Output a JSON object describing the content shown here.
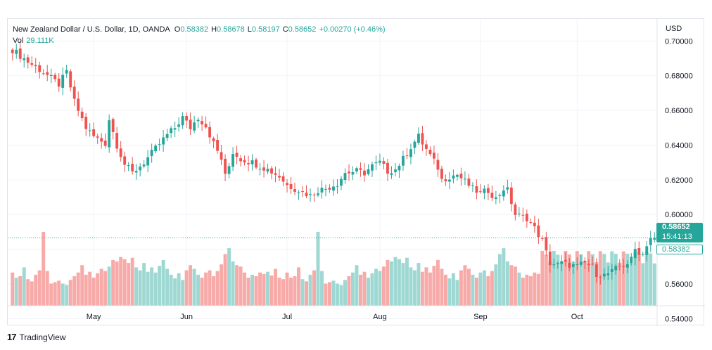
{
  "legend": {
    "symbol": "New Zealand Dollar / U.S. Dollar, 1D, OANDA",
    "o_label": "O",
    "o_value": "0.58382",
    "h_label": "H",
    "h_value": "0.58678",
    "l_label": "L",
    "l_value": "0.58197",
    "c_label": "C",
    "c_value": "0.58652",
    "change": "+0.00270 (+0.46%)",
    "vol_label": "Vol",
    "vol_value": "29.111K"
  },
  "price_scale": {
    "currency": "USD"
  },
  "tags": {
    "last_price": "0.58652",
    "countdown": "15:41:13",
    "open_price": "0.58382"
  },
  "brand": {
    "logo": "17",
    "name": "TradingView"
  },
  "colors": {
    "up": "#26a69a",
    "down": "#ef5350",
    "up_volume": "#9fd8d2",
    "down_volume": "#f7aaa8",
    "grid": "#f0f3fa"
  },
  "chart_data": {
    "type": "candlestick",
    "title": "New Zealand Dollar / U.S. Dollar, 1D, OANDA",
    "y_axis": {
      "currency": "USD",
      "ticks": [
        0.54,
        0.56,
        0.58,
        0.6,
        0.62,
        0.64,
        0.66,
        0.68,
        0.7
      ],
      "tick_labels": [
        "0.54000",
        "0.56000",
        "0.58000",
        "0.60000",
        "0.62000",
        "0.64000",
        "0.66000",
        "0.68000",
        "0.70000"
      ],
      "range": [
        0.5357,
        0.7127
      ]
    },
    "x_axis": {
      "month_labels": [
        {
          "label": "May",
          "index": 21
        },
        {
          "label": "Jun",
          "index": 45
        },
        {
          "label": "Jul",
          "index": 71
        },
        {
          "label": "Aug",
          "index": 95
        },
        {
          "label": "Sep",
          "index": 121
        },
        {
          "label": "Oct",
          "index": 146
        }
      ]
    },
    "grid": true,
    "last_price_line": 0.58652,
    "path": [
      [
        0,
        0.695
      ],
      [
        4,
        0.688
      ],
      [
        8,
        0.682
      ],
      [
        12,
        0.675
      ],
      [
        14,
        0.682
      ],
      [
        16,
        0.665
      ],
      [
        19,
        0.65
      ],
      [
        21,
        0.645
      ],
      [
        24,
        0.641
      ],
      [
        25,
        0.655
      ],
      [
        27,
        0.64
      ],
      [
        29,
        0.629
      ],
      [
        31,
        0.624
      ],
      [
        34,
        0.63
      ],
      [
        37,
        0.638
      ],
      [
        40,
        0.646
      ],
      [
        42,
        0.65
      ],
      [
        44,
        0.656
      ],
      [
        46,
        0.65
      ],
      [
        48,
        0.656
      ],
      [
        50,
        0.651
      ],
      [
        52,
        0.641
      ],
      [
        54,
        0.632
      ],
      [
        55,
        0.622
      ],
      [
        56,
        0.628
      ],
      [
        57,
        0.636
      ],
      [
        59,
        0.632
      ],
      [
        62,
        0.63
      ],
      [
        64,
        0.628
      ],
      [
        66,
        0.626
      ],
      [
        69,
        0.622
      ],
      [
        71,
        0.617
      ],
      [
        74,
        0.614
      ],
      [
        77,
        0.611
      ],
      [
        79,
        0.614
      ],
      [
        81,
        0.615
      ],
      [
        84,
        0.618
      ],
      [
        86,
        0.624
      ],
      [
        89,
        0.625
      ],
      [
        91,
        0.624
      ],
      [
        93,
        0.628
      ],
      [
        95,
        0.63
      ],
      [
        97,
        0.625
      ],
      [
        99,
        0.626
      ],
      [
        101,
        0.632
      ],
      [
        103,
        0.639
      ],
      [
        105,
        0.645
      ],
      [
        106,
        0.641
      ],
      [
        108,
        0.634
      ],
      [
        110,
        0.627
      ],
      [
        111,
        0.62
      ],
      [
        113,
        0.622
      ],
      [
        115,
        0.623
      ],
      [
        117,
        0.619
      ],
      [
        119,
        0.615
      ],
      [
        121,
        0.612
      ],
      [
        123,
        0.614
      ],
      [
        125,
        0.609
      ],
      [
        127,
        0.615
      ],
      [
        128,
        0.614
      ],
      [
        130,
        0.6
      ],
      [
        133,
        0.598
      ],
      [
        135,
        0.592
      ],
      [
        137,
        0.585
      ],
      [
        138,
        0.578
      ],
      [
        139,
        0.572
      ],
      [
        141,
        0.571
      ],
      [
        142,
        0.572
      ],
      [
        144,
        0.571
      ],
      [
        146,
        0.57
      ],
      [
        148,
        0.572
      ],
      [
        150,
        0.57
      ],
      [
        151,
        0.566
      ],
      [
        153,
        0.565
      ],
      [
        155,
        0.567
      ],
      [
        157,
        0.57
      ],
      [
        159,
        0.572
      ],
      [
        160,
        0.574
      ],
      [
        161,
        0.58
      ],
      [
        163,
        0.577
      ],
      [
        164,
        0.583
      ],
      [
        165,
        0.5865
      ]
    ],
    "volume_pattern": [
      0.45,
      0.38,
      0.4,
      0.52,
      0.36,
      0.33,
      0.42,
      0.48,
      1.0,
      0.47,
      0.3,
      0.32,
      0.34,
      0.3,
      0.28,
      0.35,
      0.4,
      0.45,
      0.55,
      0.42,
      0.46,
      0.38,
      0.44,
      0.5,
      0.47,
      0.53,
      0.62,
      0.6,
      0.66,
      0.63,
      0.58,
      0.65,
      0.52,
      0.48,
      0.58,
      0.46,
      0.52,
      0.45,
      0.54,
      0.62,
      0.5,
      0.42,
      0.37,
      0.44,
      0.35,
      0.48,
      0.55,
      0.5,
      0.42,
      0.38,
      0.45,
      0.48,
      0.4,
      0.47,
      0.56,
      0.7,
      0.78,
      0.6,
      0.55,
      0.53,
      0.45,
      0.38,
      0.42,
      0.4,
      0.45,
      0.43,
      0.46,
      0.41,
      0.5,
      0.38,
      0.36
    ]
  }
}
